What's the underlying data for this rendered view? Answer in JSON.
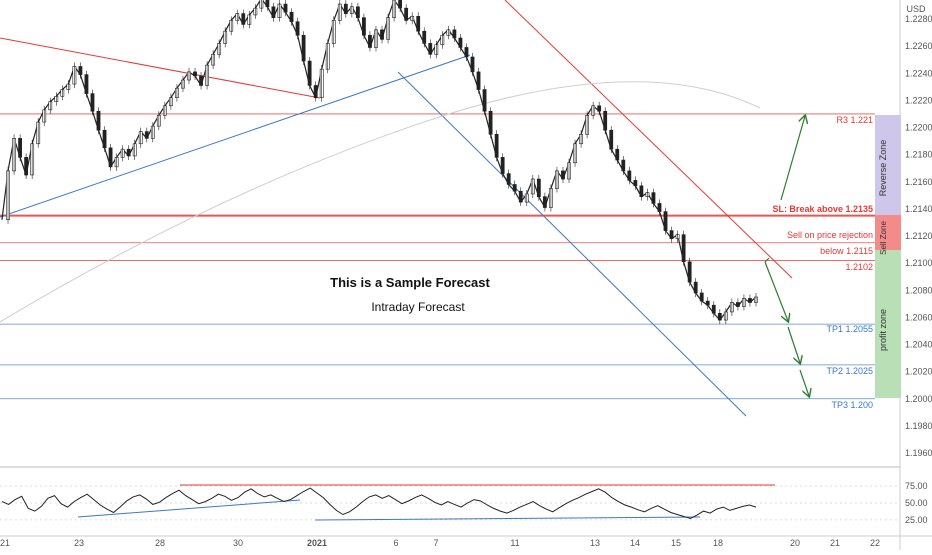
{
  "currency": "USD",
  "annotations": {
    "title": "This is a Sample Forecast",
    "subtitle": "Intraday Forecast"
  },
  "levels": {
    "r3": "R3 1.221",
    "sl": "SL: Break above 1.2135",
    "sell_line1": "Sell on price rejection",
    "sell_line2": "below  1.2115",
    "level_1102": "1.2102",
    "tp1": "TP1 1.2055",
    "tp2": "TP2 1.2025",
    "tp3": "TP3 1.200"
  },
  "zones": {
    "reverse": "Reverse Zone",
    "sell": "Sell Zone",
    "profit": "profit zone"
  },
  "colors": {
    "red": "#e53935",
    "blue": "#3b78c4",
    "green": "#2e7d32",
    "reverse_zone": "#cfc7ea",
    "sell_zone": "#f48b8b",
    "profit_zone": "#b9dfb6"
  },
  "chart_data": {
    "type": "line",
    "yaxis_label": "USD",
    "ylim": [
      1.1945,
      1.2295
    ],
    "y_ticks": [
      "1.22800",
      "1.22600",
      "1.22400",
      "1.22200",
      "1.22000",
      "1.21800",
      "1.21600",
      "1.21400",
      "1.21200",
      "1.21000",
      "1.20800",
      "1.20600",
      "1.20400",
      "1.20200",
      "1.20000",
      "1.19800",
      "1.19600"
    ],
    "x_ticks": [
      "21",
      "23",
      "28",
      "30",
      "2021",
      "6",
      "7",
      "11",
      "13",
      "14",
      "15",
      "18",
      "20",
      "21",
      "22"
    ],
    "price_levels": [
      1.221,
      1.2135,
      1.2115,
      1.2102,
      1.2055,
      1.2025,
      1.2
    ],
    "price_series": [
      1.2132,
      1.2168,
      1.2192,
      1.2178,
      1.2165,
      1.2188,
      1.2204,
      1.2213,
      1.2219,
      1.2223,
      1.2228,
      1.2232,
      1.2245,
      1.2239,
      1.2225,
      1.2212,
      1.2198,
      1.2185,
      1.2171,
      1.2178,
      1.2184,
      1.2179,
      1.2188,
      1.2197,
      1.2192,
      1.2201,
      1.2209,
      1.2216,
      1.2222,
      1.2229,
      1.2235,
      1.2241,
      1.2238,
      1.2231,
      1.2246,
      1.2254,
      1.2262,
      1.2271,
      1.2279,
      1.2284,
      1.2276,
      1.2283,
      1.2288,
      1.2295,
      1.2289,
      1.2281,
      1.2291,
      1.2285,
      1.2278,
      1.2268,
      1.2249,
      1.2231,
      1.2222,
      1.2243,
      1.2262,
      1.2279,
      1.2291,
      1.2284,
      1.2289,
      1.2281,
      1.2268,
      1.2259,
      1.2272,
      1.2265,
      1.2281,
      1.2294,
      1.2288,
      1.2279,
      1.2282,
      1.2271,
      1.2262,
      1.2254,
      1.2261,
      1.2268,
      1.2272,
      1.2266,
      1.2259,
      1.2252,
      1.2241,
      1.2228,
      1.2212,
      1.2195,
      1.2178,
      1.2166,
      1.2158,
      1.2153,
      1.2145,
      1.2151,
      1.2162,
      1.2149,
      1.2141,
      1.2155,
      1.2168,
      1.2162,
      1.2174,
      1.2188,
      1.2195,
      1.2209,
      1.2216,
      1.2212,
      1.2198,
      1.2184,
      1.2176,
      1.2168,
      1.2161,
      1.2157,
      1.2149,
      1.2152,
      1.2144,
      1.2138,
      1.2124,
      1.2118,
      1.2121,
      1.2101,
      1.2086,
      1.2078,
      1.2072,
      1.2069,
      1.2063,
      1.2058,
      1.2064,
      1.2071,
      1.2068,
      1.2074,
      1.2071,
      1.2075
    ],
    "rsi": {
      "ticks": [
        "75.00",
        "50.00",
        "25.00"
      ],
      "ylim": [
        10,
        90
      ],
      "values": [
        52,
        48,
        55,
        60,
        42,
        38,
        45,
        57,
        61,
        49,
        44,
        52,
        58,
        63,
        55,
        47,
        41,
        36,
        44,
        53,
        59,
        62,
        56,
        48,
        51,
        58,
        64,
        69,
        61,
        55,
        49,
        52,
        57,
        63,
        60,
        54,
        58,
        66,
        71,
        64,
        59,
        62,
        57,
        52,
        55,
        61,
        67,
        72,
        65,
        58,
        48,
        39,
        33,
        37,
        44,
        52,
        59,
        62,
        57,
        61,
        55,
        49,
        53,
        58,
        62,
        57,
        51,
        47,
        52,
        48,
        44,
        50,
        55,
        53,
        47,
        42,
        38,
        35,
        39,
        44,
        48,
        52,
        46,
        41,
        37,
        43,
        49,
        54,
        58,
        63,
        67,
        71,
        66,
        58,
        52,
        47,
        44,
        40,
        37,
        42,
        46,
        41,
        36,
        33,
        30,
        27,
        32,
        38,
        35,
        41,
        44,
        39,
        42,
        45,
        47,
        44
      ]
    }
  }
}
